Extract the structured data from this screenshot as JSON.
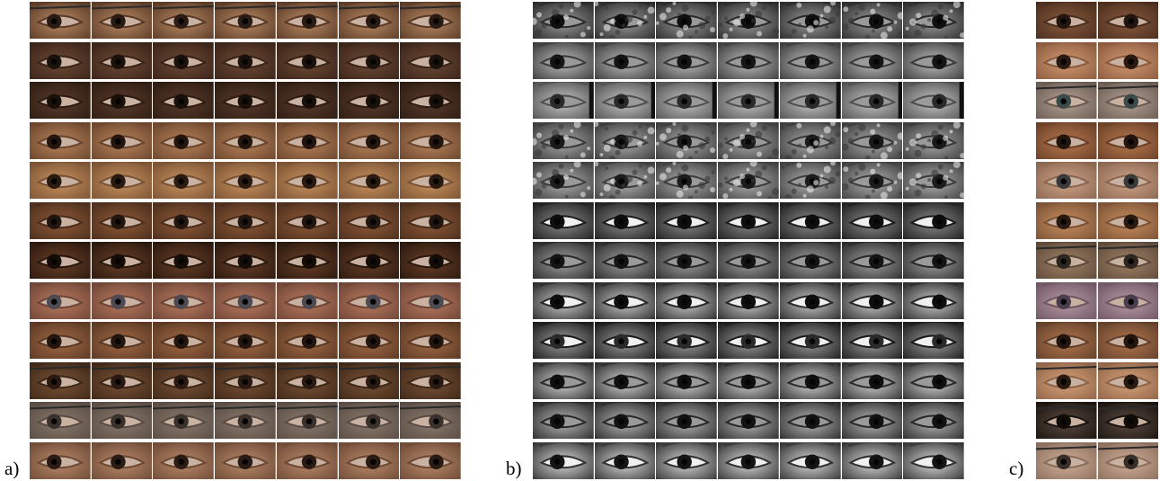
{
  "figure": {
    "panels": [
      {
        "id": "a",
        "label": "a)",
        "style": "color",
        "columns": 7,
        "rows": [
          {
            "skin": "#b98a64",
            "dark": "#5a3a26",
            "iris": "#2a1c14",
            "glasses": true
          },
          {
            "skin": "#6e4a36",
            "dark": "#3a2418",
            "iris": "#1c120c",
            "glasses": false
          },
          {
            "skin": "#5a3c2c",
            "dark": "#2e1c12",
            "iris": "#1a100a",
            "glasses": false
          },
          {
            "skin": "#b8845c",
            "dark": "#6a452c",
            "iris": "#24160e",
            "glasses": false
          },
          {
            "skin": "#c8925e",
            "dark": "#7a5234",
            "iris": "#2a1a10",
            "glasses": false
          },
          {
            "skin": "#8e5a38",
            "dark": "#4c2e1c",
            "iris": "#231610",
            "glasses": false
          },
          {
            "skin": "#6a4028",
            "dark": "#2a180e",
            "iris": "#160c08",
            "glasses": false
          },
          {
            "skin": "#b97a5e",
            "dark": "#6e4536",
            "iris": "#4e4a52",
            "glasses": false
          },
          {
            "skin": "#a26a44",
            "dark": "#5a3824",
            "iris": "#24160e",
            "glasses": false
          },
          {
            "skin": "#7a5236",
            "dark": "#3e2818",
            "iris": "#2a1a12",
            "glasses": true
          },
          {
            "skin": "#8a7a6e",
            "dark": "#5a4c44",
            "iris": "#3a302c",
            "glasses": true
          },
          {
            "skin": "#b98a6a",
            "dark": "#6e4a36",
            "iris": "#2a1c14",
            "glasses": false
          }
        ]
      },
      {
        "id": "b",
        "label": "b)",
        "style": "gray",
        "columns": 7,
        "rows": [
          {
            "skin": "#9a9a9a",
            "dark": "#2a2a2a",
            "iris": "#101010",
            "noise": true
          },
          {
            "skin": "#bdbdbd",
            "dark": "#3a3a3a",
            "iris": "#151515",
            "noise": false
          },
          {
            "skin": "#c4c4c4",
            "dark": "#505050",
            "iris": "#2a2a2a",
            "noise": false,
            "edge": true
          },
          {
            "skin": "#a9a9a9",
            "dark": "#3a3a3a",
            "iris": "#1a1a1a",
            "noise": true
          },
          {
            "skin": "#b0b0b0",
            "dark": "#3e3e3e",
            "iris": "#1c1c1c",
            "noise": true
          },
          {
            "skin": "#8a8a8a",
            "dark": "#1e1e1e",
            "iris": "#0e0e0e",
            "noise": false,
            "whites": true
          },
          {
            "skin": "#a0a0a0",
            "dark": "#2a2a2a",
            "iris": "#141414",
            "noise": false
          },
          {
            "skin": "#c9c9c9",
            "dark": "#2a2a2a",
            "iris": "#0e0e0e",
            "noise": false,
            "whites": true
          },
          {
            "skin": "#9c9c9c",
            "dark": "#1a1a1a",
            "iris": "#2a2a2a",
            "noise": false,
            "whites": true
          },
          {
            "skin": "#d4d4d4",
            "dark": "#2c2c2c",
            "iris": "#101010",
            "noise": false
          },
          {
            "skin": "#b6b6b6",
            "dark": "#2a2a2a",
            "iris": "#121212",
            "noise": false
          },
          {
            "skin": "#d8d8d8",
            "dark": "#333333",
            "iris": "#141414",
            "noise": false,
            "whites": true
          }
        ]
      },
      {
        "id": "c",
        "label": "c)",
        "style": "color",
        "columns": 2,
        "rows": [
          {
            "skin": "#8a5a3c",
            "dark": "#4a2e1e",
            "iris": "#22160e",
            "glasses": false
          },
          {
            "skin": "#d49a72",
            "dark": "#8a5a3e",
            "iris": "#2a1a10",
            "glasses": false
          },
          {
            "skin": "#b4a296",
            "dark": "#6a5a50",
            "iris": "#3c4a4a",
            "glasses": true
          },
          {
            "skin": "#b8784e",
            "dark": "#6a4028",
            "iris": "#24160e",
            "glasses": false
          },
          {
            "skin": "#d0a488",
            "dark": "#8a6650",
            "iris": "#3a3a3a",
            "glasses": false
          },
          {
            "skin": "#c98e5e",
            "dark": "#7a5236",
            "iris": "#2a1a10",
            "glasses": false
          },
          {
            "skin": "#a08266",
            "dark": "#5e4a3a",
            "iris": "#2e2620",
            "glasses": true
          },
          {
            "skin": "#b89aa6",
            "dark": "#6e5662",
            "iris": "#4a3e4e",
            "glasses": false
          },
          {
            "skin": "#b2764e",
            "dark": "#62402a",
            "iris": "#24160e",
            "glasses": false
          },
          {
            "skin": "#d9a27a",
            "dark": "#8e6448",
            "iris": "#2a1a10",
            "glasses": true
          },
          {
            "skin": "#5a4a40",
            "dark": "#1c1410",
            "iris": "#120c08",
            "glasses": true
          },
          {
            "skin": "#d2b09a",
            "dark": "#8a6e5c",
            "iris": "#3a2e28",
            "glasses": true
          }
        ]
      }
    ]
  }
}
